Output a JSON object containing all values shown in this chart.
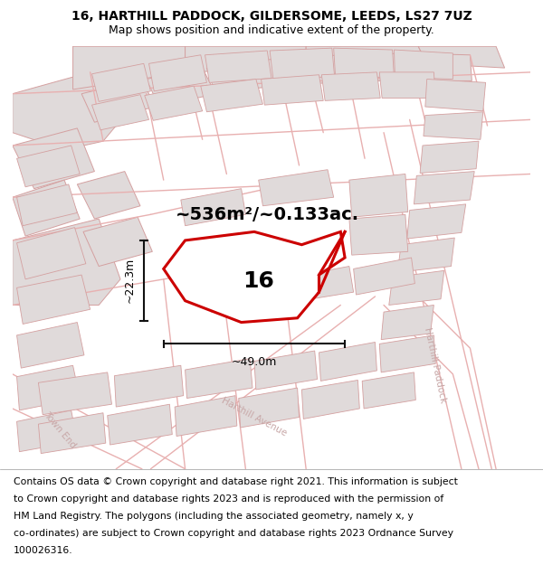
{
  "title": "16, HARTHILL PADDOCK, GILDERSOME, LEEDS, LS27 7UZ",
  "subtitle": "Map shows position and indicative extent of the property.",
  "area_text": "~536m²/~0.133ac.",
  "width_text": "~49.0m",
  "height_text": "~22.3m",
  "plot_number": "16",
  "footer_lines": [
    "Contains OS data © Crown copyright and database right 2021. This information is subject",
    "to Crown copyright and database rights 2023 and is reproduced with the permission of",
    "HM Land Registry. The polygons (including the associated geometry, namely x, y",
    "co-ordinates) are subject to Crown copyright and database rights 2023 Ordnance Survey",
    "100026316."
  ],
  "map_bg": "#ffffff",
  "building_fill": "#e0dada",
  "building_edge": "#d4a0a0",
  "road_color": "#e8b0b0",
  "red_color": "#cc0000",
  "dim_color": "#111111",
  "footer_fontsize": 7.8,
  "title_fontsize": 10,
  "subtitle_fontsize": 9,
  "area_fontsize": 14,
  "plot_label_fontsize": 18,
  "dim_fontsize": 9,
  "street_label_color": "#c8a8a8",
  "street_label_fontsize": 7.5
}
